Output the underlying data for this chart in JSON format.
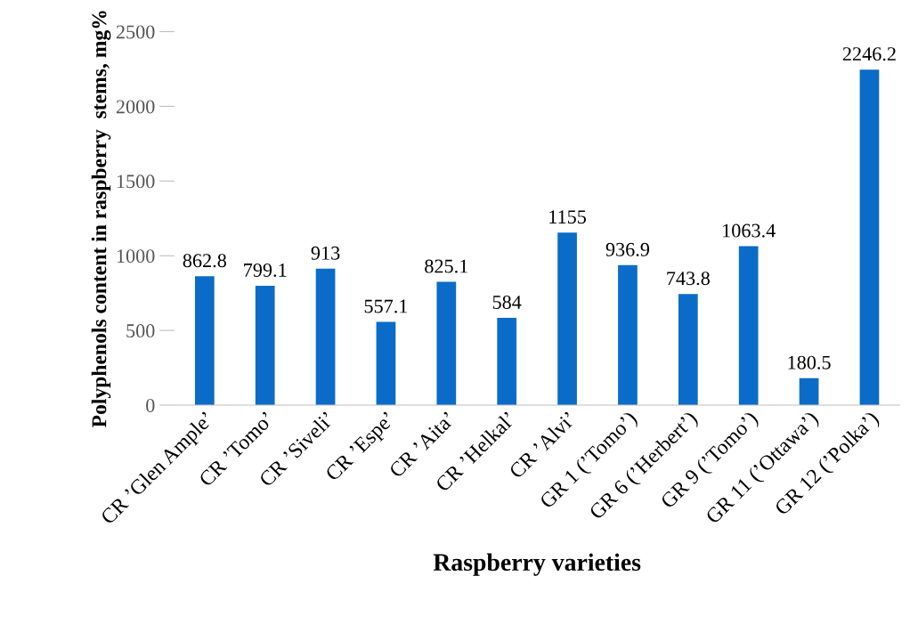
{
  "chart_data": {
    "type": "bar",
    "xlabel": "Raspberry varieties",
    "ylabel": "Polyphenols content in raspberry  stems, mg%",
    "categories": [
      "CR ’Glen Ample’",
      "CR ’Tomo’",
      "CR ’Siveli’",
      "CR ’Espe’",
      "CR ’Aita’",
      "CR ’Helkal’",
      "CR ’Alvi’",
      "GR 1 (’Tomo’)",
      "GR 6 (’Herbert’)",
      "GR 9 (’Tomo’)",
      "GR 11 (’Ottawa’)",
      "GR 12 (’Polka’)"
    ],
    "values": [
      862.8,
      799.1,
      913,
      557.1,
      825.1,
      584,
      1155,
      936.9,
      743.8,
      1063.4,
      180.5,
      2246.2
    ],
    "color": "#0a6cc8",
    "ylim": [
      0,
      2500
    ],
    "yticks": [
      0,
      500,
      1000,
      1500,
      2000,
      2500
    ],
    "data_labels": true,
    "grid": false
  }
}
